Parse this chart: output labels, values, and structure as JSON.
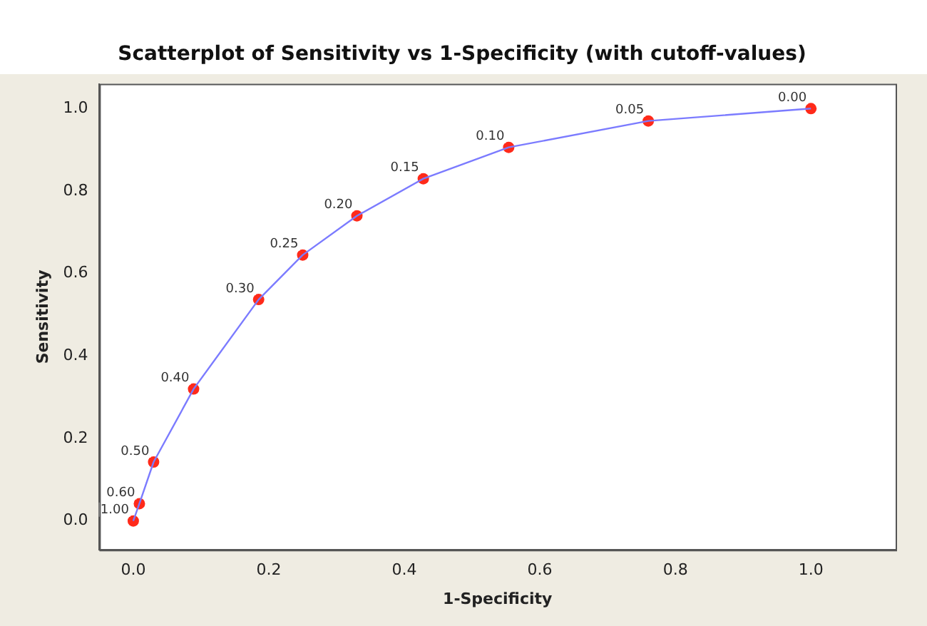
{
  "chart_data": {
    "type": "scatter",
    "title": "Scatterplot of Sensitivity vs 1-Specificity (with cutoff-values)",
    "xlabel": "1-Specificity",
    "ylabel": "Sensitivity",
    "xlim": [
      -0.05,
      1.125
    ],
    "xticks": [
      {
        "value": 0,
        "label": "0.0"
      },
      {
        "value": 0.2,
        "label": "0.2"
      },
      {
        "value": 0.4,
        "label": "0.4"
      },
      {
        "value": 0.6,
        "label": "0.6"
      },
      {
        "value": 0.8,
        "label": "0.8"
      },
      {
        "value": 1,
        "label": "1.0"
      }
    ],
    "ylim": [
      -0.07,
      1.06
    ],
    "yticks": [
      {
        "value": 0,
        "label": "0.0"
      },
      {
        "value": 0.2,
        "label": "0.2"
      },
      {
        "value": 0.4,
        "label": "0.4"
      },
      {
        "value": 0.6,
        "label": "0.6"
      },
      {
        "value": 0.8,
        "label": "0.8"
      },
      {
        "value": 1,
        "label": "1.0"
      }
    ],
    "grid": false,
    "legend": false,
    "series": [
      {
        "type": "line",
        "marker": "none",
        "color": "#7b7bff",
        "x": [
          0,
          0.009,
          0.03,
          0.089,
          0.185,
          0.25,
          0.33,
          0.428,
          0.554,
          0.76,
          1
        ],
        "values": [
          0,
          0.042,
          0.143,
          0.32,
          0.537,
          0.645,
          0.74,
          0.83,
          0.906,
          0.97,
          1
        ]
      },
      {
        "type": "scatter",
        "marker": "circle",
        "color": "#ff2a1a",
        "x": [
          0,
          0.009,
          0.03,
          0.089,
          0.185,
          0.25,
          0.33,
          0.428,
          0.554,
          0.76,
          1
        ],
        "values": [
          0,
          0.042,
          0.143,
          0.32,
          0.537,
          0.645,
          0.74,
          0.83,
          0.906,
          0.97,
          1
        ]
      }
    ],
    "annotations": [
      {
        "text": "1.00",
        "x": 0,
        "y": 0
      },
      {
        "text": "0.60",
        "x": 0.009,
        "y": 0.042
      },
      {
        "text": "0.50",
        "x": 0.03,
        "y": 0.143
      },
      {
        "text": "0.40",
        "x": 0.089,
        "y": 0.32
      },
      {
        "text": "0.30",
        "x": 0.185,
        "y": 0.537
      },
      {
        "text": "0.25",
        "x": 0.25,
        "y": 0.645
      },
      {
        "text": "0.20",
        "x": 0.33,
        "y": 0.74
      },
      {
        "text": "0.15",
        "x": 0.428,
        "y": 0.83
      },
      {
        "text": "0.10",
        "x": 0.554,
        "y": 0.906
      },
      {
        "text": "0.05",
        "x": 0.76,
        "y": 0.97
      },
      {
        "text": "0.00",
        "x": 1,
        "y": 1
      }
    ]
  }
}
